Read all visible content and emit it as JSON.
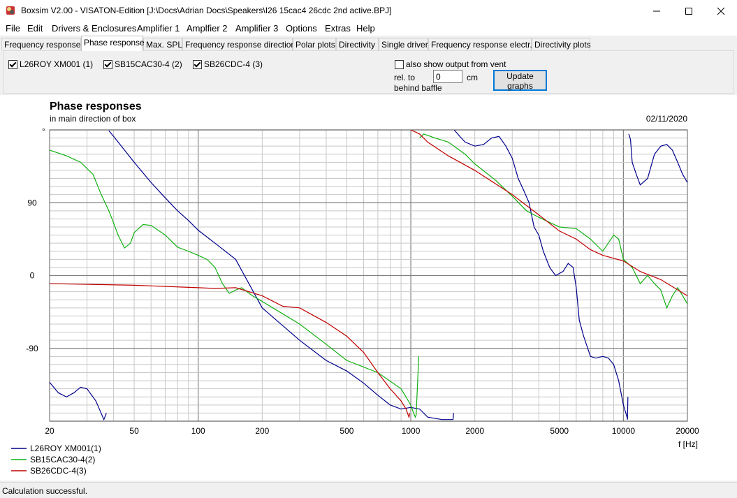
{
  "window": {
    "title": "Boxsim V2.00 - VISATON-Edition [J:\\Docs\\Adrian Docs\\Speakers\\I26 15cac4 26cdc 2nd active.BPJ]",
    "minimize": "—",
    "maximize": "☐",
    "close": "✕"
  },
  "menu": [
    "File",
    "Edit",
    "Drivers & Enclosures",
    "Amplifier 1",
    "Amplfier 2",
    "Amplifier 3",
    "Options",
    "Extras",
    "Help"
  ],
  "tabs": [
    "Frequency response.",
    "Phase response",
    "Max. SPL",
    "Frequency response directions",
    "Polar plots",
    "Directivity",
    "Single driver",
    "Frequency response electr..",
    "Directivity plots"
  ],
  "active_tab": 1,
  "controls": {
    "drivers": [
      {
        "label": "L26ROY XM001 (1)",
        "checked": true
      },
      {
        "label": "SB15CAC30-4 (2)",
        "checked": true
      },
      {
        "label": "SB26CDC-4 (3)",
        "checked": true
      }
    ],
    "vent_checkbox": {
      "label": "also show output from vent",
      "checked": false
    },
    "rel_to": "rel. to",
    "behind_baffle": "behind baffle",
    "offset_value": "0",
    "offset_unit": "cm",
    "update_button": "Update graphs"
  },
  "status": "Calculation successful.",
  "chart_data": {
    "type": "line",
    "title": "Phase responses",
    "subtitle": "in main direction of box",
    "date": "02/11/2020",
    "xlabel": "f [Hz]",
    "ylabel": "°",
    "x_scale": "log",
    "xlim": [
      20,
      20000
    ],
    "ylim": [
      -180,
      180
    ],
    "x_ticks": [
      20,
      50,
      100,
      200,
      500,
      1000,
      2000,
      5000,
      10000,
      20000
    ],
    "y_ticks": [
      90,
      0,
      -90
    ],
    "grid": true,
    "legend_position": "bottom-left",
    "series": [
      {
        "name": "L26ROY XM001(1)",
        "color": "#00008b",
        "points": [
          [
            20,
            -132
          ],
          [
            22,
            -145
          ],
          [
            24,
            -150
          ],
          [
            26,
            -145
          ],
          [
            28,
            -138
          ],
          [
            30,
            -140
          ],
          [
            33,
            -155
          ],
          [
            36,
            -178
          ],
          [
            37,
            -170
          ],
          [
            38,
            179
          ],
          [
            40,
            172
          ],
          [
            50,
            140
          ],
          [
            60,
            115
          ],
          [
            70,
            96
          ],
          [
            80,
            80
          ],
          [
            90,
            68
          ],
          [
            100,
            56
          ],
          [
            120,
            40
          ],
          [
            150,
            20
          ],
          [
            200,
            -40
          ],
          [
            300,
            -80
          ],
          [
            400,
            -105
          ],
          [
            500,
            -118
          ],
          [
            600,
            -133
          ],
          [
            700,
            -148
          ],
          [
            800,
            -160
          ],
          [
            900,
            -165
          ],
          [
            1000,
            -163
          ],
          [
            1100,
            -165
          ],
          [
            1200,
            -175
          ],
          [
            1400,
            -178
          ],
          [
            1580,
            -178
          ],
          [
            1590,
            -170
          ],
          [
            1600,
            180
          ],
          [
            1700,
            172
          ],
          [
            1800,
            165
          ],
          [
            2000,
            160
          ],
          [
            2200,
            162
          ],
          [
            2400,
            170
          ],
          [
            2600,
            172
          ],
          [
            2800,
            160
          ],
          [
            3000,
            145
          ],
          [
            3200,
            120
          ],
          [
            3400,
            105
          ],
          [
            3600,
            90
          ],
          [
            3800,
            60
          ],
          [
            4000,
            50
          ],
          [
            4200,
            30
          ],
          [
            4500,
            10
          ],
          [
            4800,
            0
          ],
          [
            5200,
            5
          ],
          [
            5500,
            15
          ],
          [
            5800,
            10
          ],
          [
            6000,
            -15
          ],
          [
            6200,
            -55
          ],
          [
            6500,
            -75
          ],
          [
            7000,
            -100
          ],
          [
            7400,
            -102
          ],
          [
            8000,
            -100
          ],
          [
            8500,
            -102
          ],
          [
            9000,
            -110
          ],
          [
            9500,
            -130
          ],
          [
            10000,
            -160
          ],
          [
            10400,
            -175
          ],
          [
            10450,
            -178
          ],
          [
            10500,
            -150
          ],
          [
            10600,
            175
          ],
          [
            10800,
            168
          ],
          [
            11000,
            140
          ],
          [
            11500,
            125
          ],
          [
            12000,
            112
          ],
          [
            13000,
            120
          ],
          [
            14000,
            150
          ],
          [
            15000,
            160
          ],
          [
            16000,
            162
          ],
          [
            17000,
            155
          ],
          [
            18000,
            140
          ],
          [
            19000,
            125
          ],
          [
            20000,
            115
          ]
        ]
      },
      {
        "name": "SB15CAC30-4(2)",
        "color": "#10b010",
        "points": [
          [
            20,
            155
          ],
          [
            24,
            148
          ],
          [
            28,
            140
          ],
          [
            32,
            125
          ],
          [
            35,
            100
          ],
          [
            38,
            80
          ],
          [
            40,
            65
          ],
          [
            42,
            50
          ],
          [
            45,
            34
          ],
          [
            48,
            40
          ],
          [
            50,
            53
          ],
          [
            55,
            63
          ],
          [
            60,
            62
          ],
          [
            70,
            50
          ],
          [
            80,
            35
          ],
          [
            90,
            30
          ],
          [
            100,
            25
          ],
          [
            110,
            20
          ],
          [
            120,
            10
          ],
          [
            130,
            -10
          ],
          [
            140,
            -22
          ],
          [
            150,
            -18
          ],
          [
            160,
            -15
          ],
          [
            180,
            -25
          ],
          [
            200,
            -32
          ],
          [
            300,
            -60
          ],
          [
            400,
            -85
          ],
          [
            500,
            -105
          ],
          [
            700,
            -120
          ],
          [
            900,
            -140
          ],
          [
            1000,
            -160
          ],
          [
            1030,
            -170
          ],
          [
            1050,
            -175
          ],
          [
            1060,
            -172
          ],
          [
            1090,
            -100
          ],
          [
            1100,
            170
          ],
          [
            1150,
            175
          ],
          [
            1300,
            170
          ],
          [
            1500,
            165
          ],
          [
            1800,
            150
          ],
          [
            2000,
            138
          ],
          [
            2500,
            118
          ],
          [
            3000,
            98
          ],
          [
            3500,
            80
          ],
          [
            4000,
            72
          ],
          [
            5000,
            60
          ],
          [
            6000,
            58
          ],
          [
            7000,
            45
          ],
          [
            8000,
            30
          ],
          [
            9000,
            50
          ],
          [
            9500,
            45
          ],
          [
            10000,
            20
          ],
          [
            11000,
            10
          ],
          [
            12000,
            -10
          ],
          [
            13000,
            0
          ],
          [
            14000,
            -10
          ],
          [
            15000,
            -18
          ],
          [
            16000,
            -40
          ],
          [
            17000,
            -25
          ],
          [
            18000,
            -15
          ],
          [
            19000,
            -25
          ],
          [
            20000,
            -35
          ]
        ]
      },
      {
        "name": "SB26CDC-4(3)",
        "color": "#c00000",
        "points": [
          [
            20,
            -10
          ],
          [
            50,
            -12
          ],
          [
            100,
            -15
          ],
          [
            120,
            -16
          ],
          [
            150,
            -15
          ],
          [
            200,
            -25
          ],
          [
            250,
            -38
          ],
          [
            300,
            -40
          ],
          [
            400,
            -58
          ],
          [
            500,
            -75
          ],
          [
            600,
            -95
          ],
          [
            700,
            -120
          ],
          [
            800,
            -140
          ],
          [
            900,
            -155
          ],
          [
            950,
            -165
          ],
          [
            980,
            -175
          ],
          [
            990,
            -170
          ],
          [
            1000,
            180
          ],
          [
            1100,
            175
          ],
          [
            1200,
            165
          ],
          [
            1500,
            148
          ],
          [
            2000,
            130
          ],
          [
            3000,
            100
          ],
          [
            4000,
            75
          ],
          [
            5000,
            55
          ],
          [
            6000,
            45
          ],
          [
            7000,
            32
          ],
          [
            8000,
            25
          ],
          [
            10000,
            18
          ],
          [
            12000,
            5
          ],
          [
            15000,
            -5
          ],
          [
            20000,
            -25
          ]
        ]
      }
    ]
  }
}
